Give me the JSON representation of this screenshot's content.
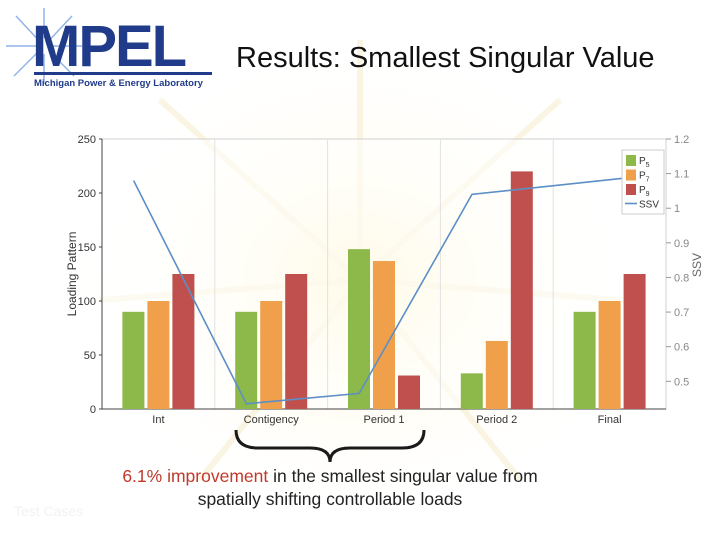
{
  "slide": {
    "title": "Results: Smallest Singular Value",
    "logo_text": "MPEL",
    "logo_subtitle": "Michigan Power & Energy Laboratory",
    "caption_highlight": "6.1% improvement",
    "caption_rest": " in the smallest singular value from spatially shifting controllable loads",
    "ghost_label": "Test Cases"
  },
  "colors": {
    "brand": "#1f3b8a",
    "p5": "#8db84a",
    "p7": "#f0a04b",
    "p9": "#c0504d",
    "ssv": "#5b8fc6",
    "highlight": "#c0392b"
  },
  "chart_data": {
    "type": "bar",
    "categories": [
      "Int",
      "Contigency",
      "Period 1",
      "Period 2",
      "Final"
    ],
    "ylabel": "Loading Pattern",
    "ylim": [
      0,
      250
    ],
    "yticks": [
      0,
      50,
      100,
      150,
      200,
      250
    ],
    "y2label": "SSV",
    "y2lim": [
      0.42,
      1.2
    ],
    "y2ticks": [
      0.5,
      0.6,
      0.7,
      0.8,
      0.9,
      1,
      1.1,
      1.2
    ],
    "series": [
      {
        "name": "P5",
        "legend_main": "P",
        "legend_sub": "5",
        "values": [
          90,
          90,
          148,
          33,
          90
        ]
      },
      {
        "name": "P7",
        "legend_main": "P",
        "legend_sub": "7",
        "values": [
          100,
          100,
          137,
          63,
          100
        ]
      },
      {
        "name": "P9",
        "legend_main": "P",
        "legend_sub": "9",
        "values": [
          125,
          125,
          31,
          220,
          125
        ]
      }
    ],
    "line": {
      "name": "SSV",
      "axis": "right",
      "values": [
        1.08,
        0.435,
        0.465,
        1.04,
        1.09
      ],
      "x_offsets": [
        -0.22,
        -0.22,
        -0.22,
        -0.22,
        0.22
      ]
    },
    "grid": "vertical",
    "legend": "top-right"
  }
}
